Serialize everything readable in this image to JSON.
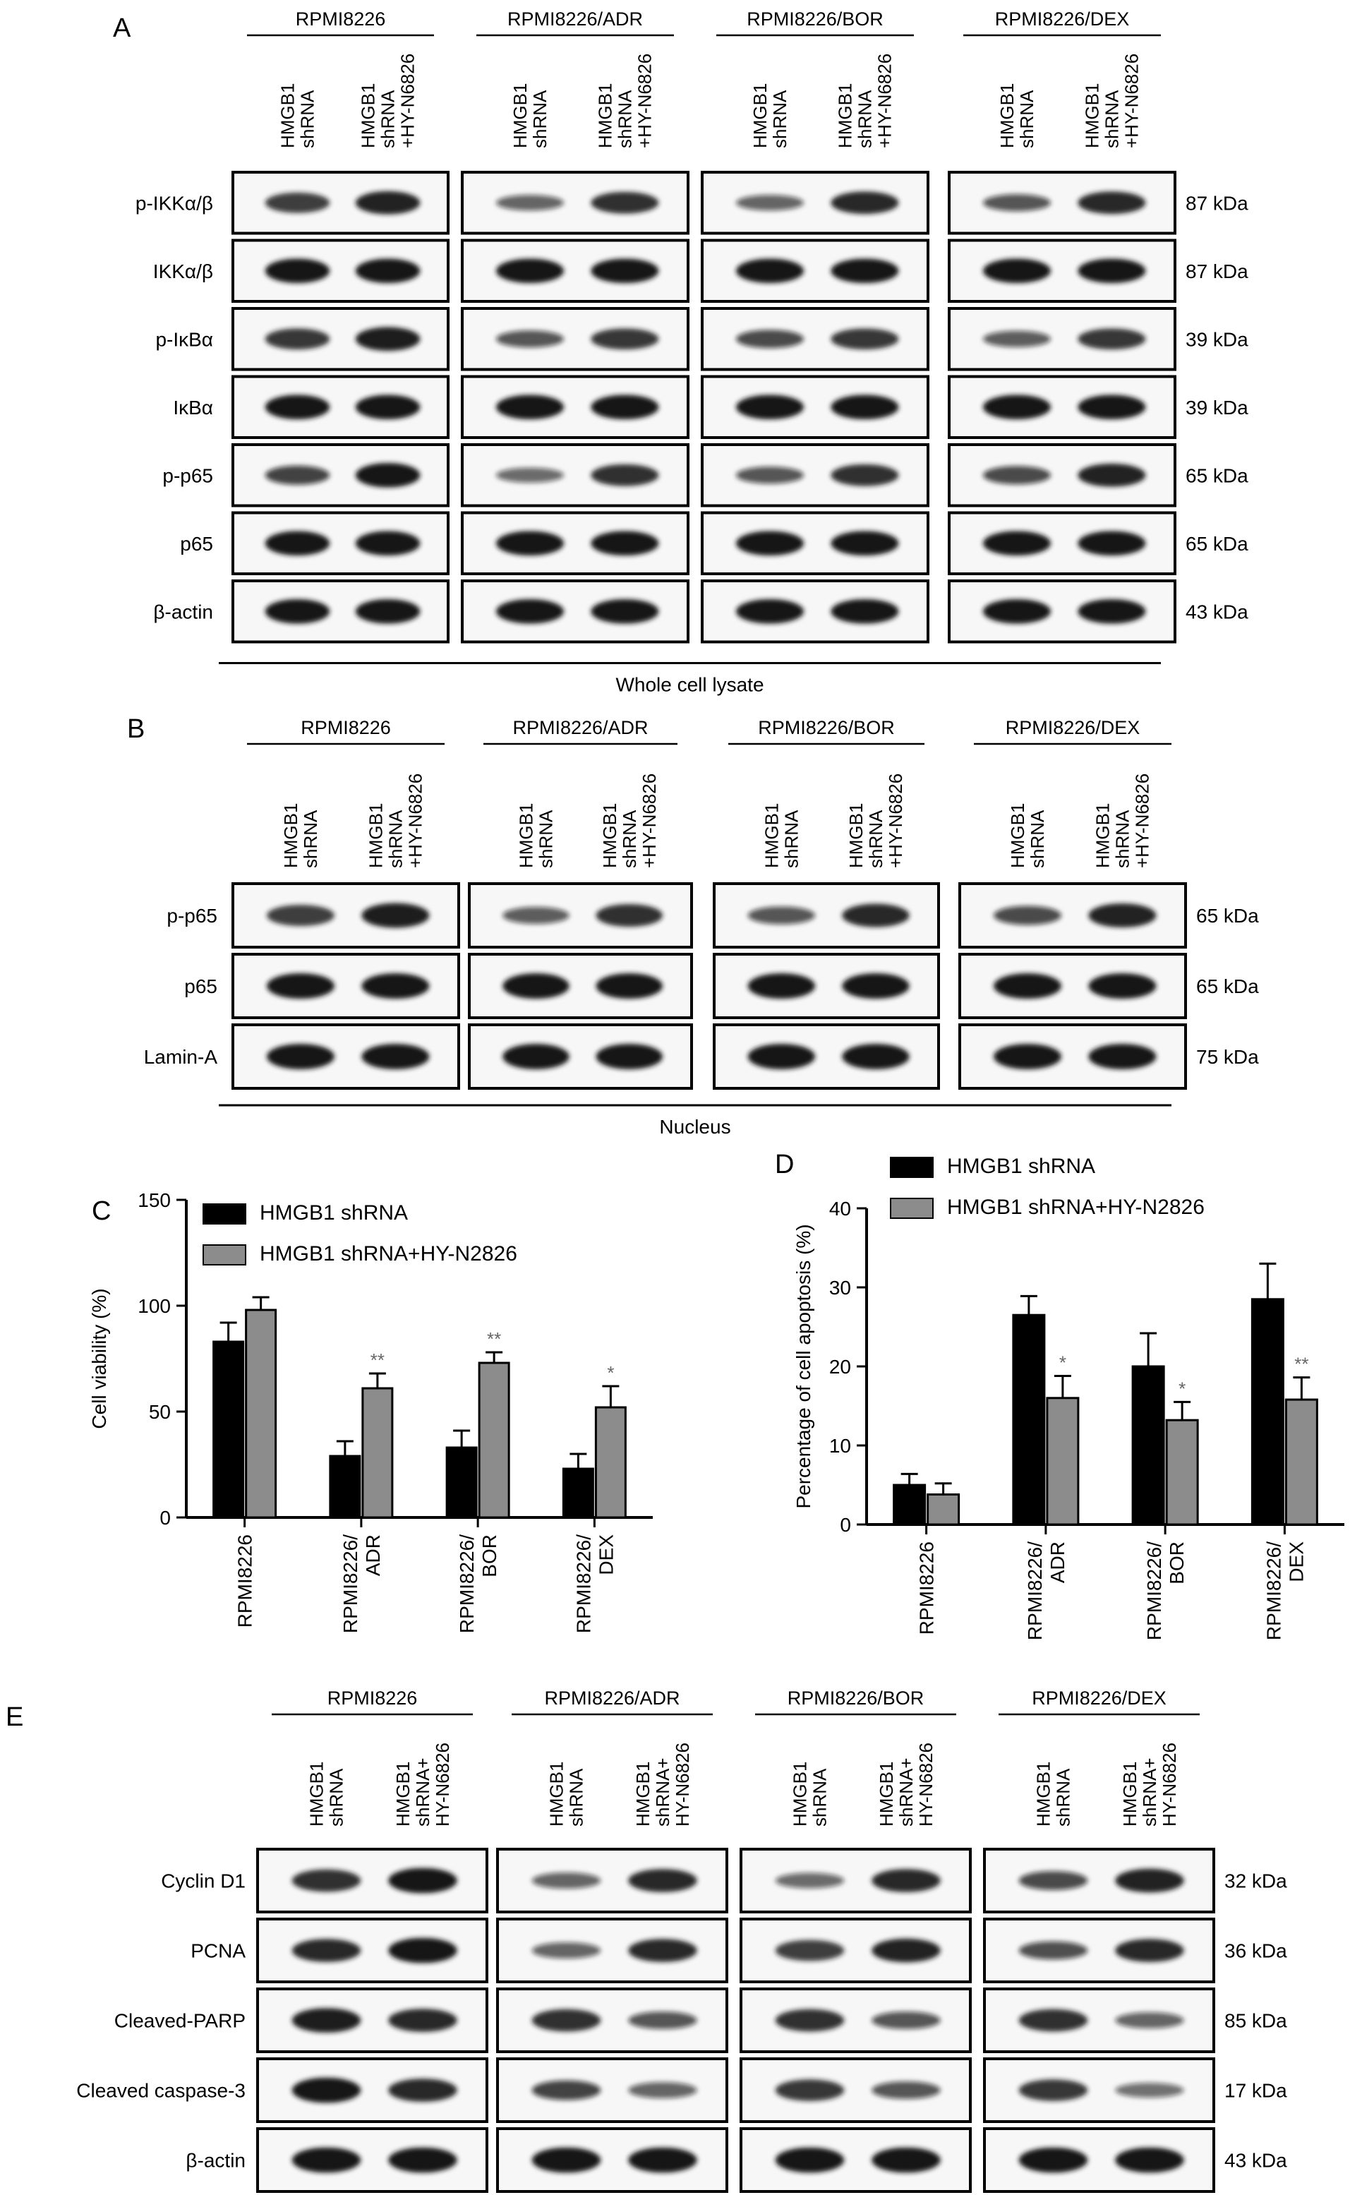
{
  "panel_a": {
    "label": "A",
    "groups": [
      "RPMI8226",
      "RPMI8226/ADR",
      "RPMI8226/BOR",
      "RPMI8226/DEX"
    ],
    "lane_labels": [
      [
        "HMGB1",
        "shRNA"
      ],
      [
        "HMGB1",
        "shRNA",
        "+HY-N6826"
      ]
    ],
    "rows": [
      {
        "name": "p-IKKα/β",
        "kda": "87 kDa"
      },
      {
        "name": "IKKα/β",
        "kda": "87 kDa"
      },
      {
        "name": "p-IκBα",
        "kda": "39 kDa"
      },
      {
        "name": "IκBα",
        "kda": "39 kDa"
      },
      {
        "name": "p-p65",
        "kda": "65 kDa"
      },
      {
        "name": "p65",
        "kda": "65 kDa"
      },
      {
        "name": "β-actin",
        "kda": "43 kDa"
      }
    ],
    "fraction": "Whole cell lysate"
  },
  "panel_b": {
    "label": "B",
    "groups": [
      "RPMI8226",
      "RPMI8226/ADR",
      "RPMI8226/BOR",
      "RPMI8226/DEX"
    ],
    "lane_labels": [
      [
        "HMGB1",
        "shRNA"
      ],
      [
        "HMGB1",
        "shRNA",
        "+HY-N6826"
      ]
    ],
    "rows": [
      {
        "name": "p-p65",
        "kda": "65 kDa"
      },
      {
        "name": "p65",
        "kda": "65 kDa"
      },
      {
        "name": "Lamin-A",
        "kda": "75 kDa"
      }
    ],
    "fraction": "Nucleus"
  },
  "panel_c": {
    "label": "C",
    "legend": [
      "HMGB1 shRNA",
      "HMGB1 shRNA+HY-N2826"
    ],
    "ylabel": "Cell viability (%)",
    "yticks": [
      "0",
      "50",
      "100",
      "150"
    ],
    "xticks": [
      [
        "RPMI8226"
      ],
      [
        "RPMI8226/",
        "ADR"
      ],
      [
        "RPMI8226/",
        "BOR"
      ],
      [
        "RPMI8226/",
        "DEX"
      ]
    ]
  },
  "panel_d": {
    "label": "D",
    "legend": [
      "HMGB1 shRNA",
      "HMGB1 shRNA+HY-N2826"
    ],
    "ylabel": "Percentage of cell apoptosis (%)",
    "yticks": [
      "0",
      "10",
      "20",
      "30",
      "40"
    ],
    "xticks": [
      [
        "RPMI8226"
      ],
      [
        "RPMI8226/",
        "ADR"
      ],
      [
        "RPMI8226/",
        "BOR"
      ],
      [
        "RPMI8226/",
        "DEX"
      ]
    ]
  },
  "panel_e": {
    "label": "E",
    "groups": [
      "RPMI8226",
      "RPMI8226/ADR",
      "RPMI8226/BOR",
      "RPMI8226/DEX"
    ],
    "lane_labels": [
      [
        "HMGB1",
        "shRNA"
      ],
      [
        "HMGB1",
        "shRNA+",
        "HY-N6826"
      ]
    ],
    "rows": [
      {
        "name": "Cyclin D1",
        "kda": "32 kDa"
      },
      {
        "name": "PCNA",
        "kda": "36 kDa"
      },
      {
        "name": "Cleaved-PARP",
        "kda": "85 kDa"
      },
      {
        "name": "Cleaved caspase-3",
        "kda": "17 kDa"
      },
      {
        "name": "β-actin",
        "kda": "43 kDa"
      }
    ]
  },
  "colors": {
    "series1": "#000000",
    "series2": "#8c8c8c",
    "blot_band": "#141414"
  },
  "chart_data": [
    {
      "type": "bar",
      "panel": "C",
      "categories": [
        "RPMI8226",
        "RPMI8226/ADR",
        "RPMI8226/BOR",
        "RPMI8226/DEX"
      ],
      "series": [
        {
          "name": "HMGB1 shRNA",
          "values": [
            83,
            29,
            33,
            23
          ],
          "errors": [
            9,
            7,
            8,
            7
          ]
        },
        {
          "name": "HMGB1 shRNA+HY-N2826",
          "values": [
            98,
            61,
            73,
            52
          ],
          "errors": [
            6,
            7,
            5,
            10
          ]
        }
      ],
      "significance": [
        "",
        "**",
        "**",
        "*"
      ],
      "ylabel": "Cell viability (%)",
      "ylim": [
        0,
        150
      ],
      "legend": "top"
    },
    {
      "type": "bar",
      "panel": "D",
      "categories": [
        "RPMI8226",
        "RPMI8226/ADR",
        "RPMI8226/BOR",
        "RPMI8226/DEX"
      ],
      "series": [
        {
          "name": "HMGB1 shRNA",
          "values": [
            5.0,
            26.5,
            20.0,
            28.5
          ],
          "errors": [
            1.4,
            2.4,
            4.2,
            4.5
          ]
        },
        {
          "name": "HMGB1 shRNA+HY-N2826",
          "values": [
            3.8,
            16.0,
            13.2,
            15.8
          ],
          "errors": [
            1.4,
            2.8,
            2.3,
            2.8
          ]
        }
      ],
      "significance": [
        "",
        "*",
        "*",
        "**"
      ],
      "ylabel": "Percentage of cell apoptosis (%)",
      "ylim": [
        0,
        40
      ],
      "legend": "top"
    }
  ]
}
